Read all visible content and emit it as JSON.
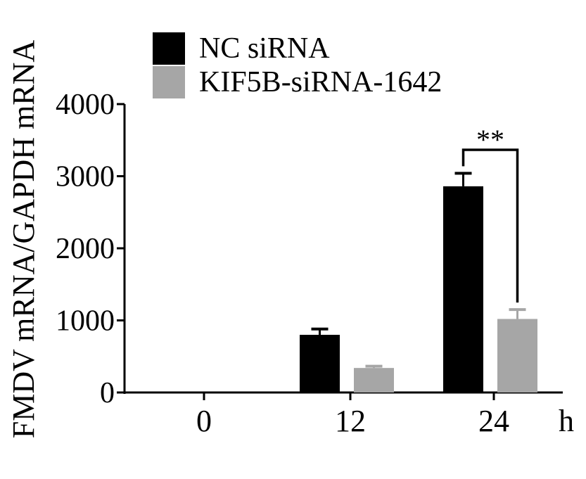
{
  "chart_data": {
    "type": "bar",
    "ylabel": "FMDV mRNA/GAPDH mRNA",
    "xlabel": "",
    "x_unit": "h",
    "categories": [
      "0",
      "12",
      "24"
    ],
    "series": [
      {
        "name": "NC siRNA",
        "color": "#000000",
        "values": [
          0,
          800,
          2860
        ],
        "errors": [
          0,
          80,
          180
        ]
      },
      {
        "name": "KIF5B-siRNA-1642",
        "color": "#a6a6a6",
        "values": [
          0,
          340,
          1020
        ],
        "errors": [
          0,
          25,
          130
        ]
      }
    ],
    "ylim": [
      0,
      4000
    ],
    "yticks": [
      "0",
      "1000",
      "2000",
      "3000",
      "4000"
    ],
    "significance": [
      {
        "category": "24",
        "label": "**"
      }
    ],
    "legend_position": "top",
    "grid": false
  }
}
